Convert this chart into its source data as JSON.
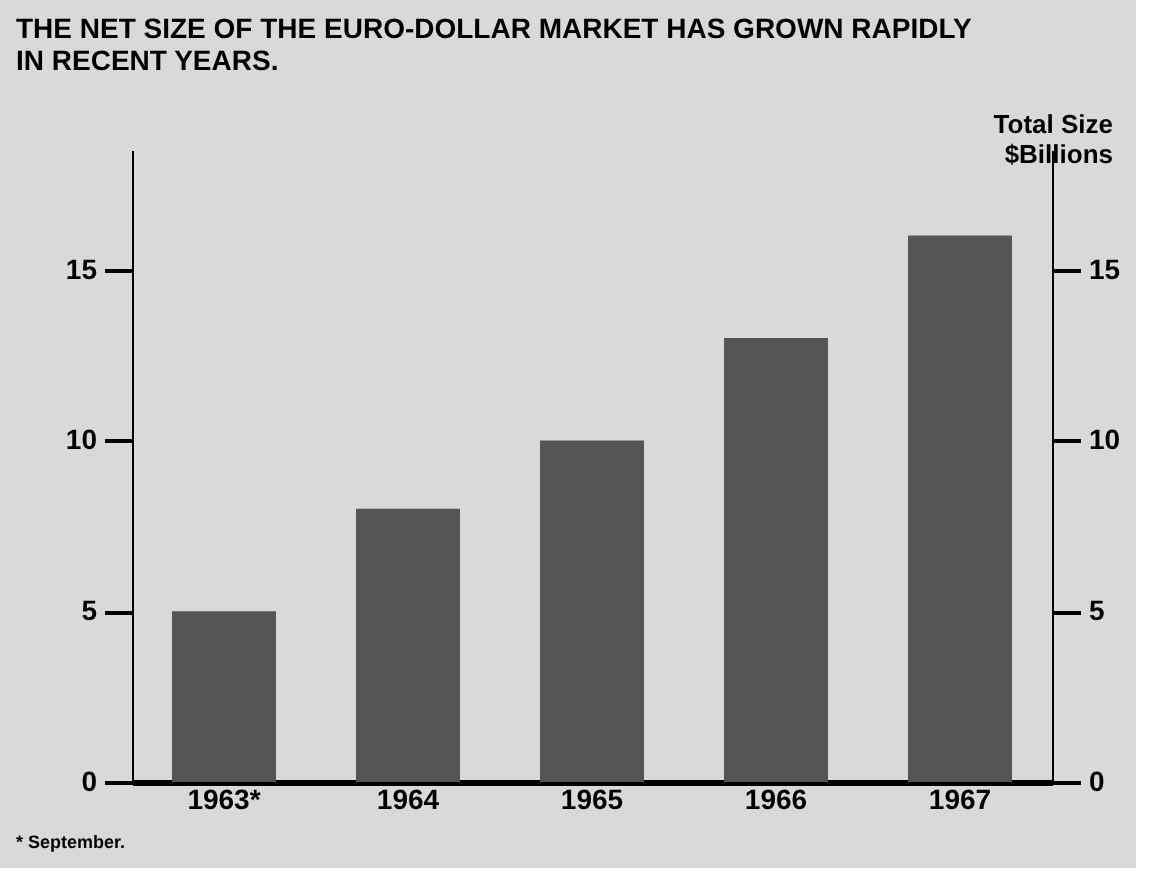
{
  "chart_data": {
    "type": "bar",
    "title": "THE NET SIZE OF THE EURO-DOLLAR MARKET HAS GROWN RAPIDLY IN RECENT YEARS.",
    "y2label": "Total Size $Billions",
    "categories": [
      "1963*",
      "1964",
      "1965",
      "1966",
      "1967"
    ],
    "values": [
      5,
      8,
      10,
      13,
      16
    ],
    "color": "#555555",
    "ylim": [
      0,
      18.5
    ],
    "yticks": [
      0,
      5,
      10,
      15
    ],
    "y2lim": [
      0,
      18.5
    ],
    "y2ticks": [
      0,
      5,
      10,
      15
    ],
    "annotations": [
      "* September."
    ]
  }
}
